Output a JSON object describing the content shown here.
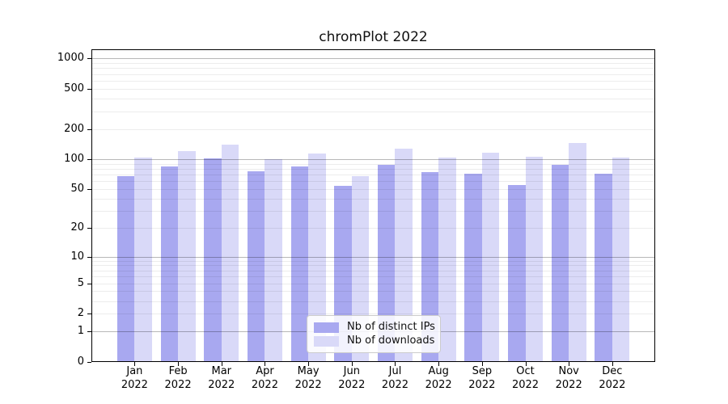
{
  "chart_data": {
    "type": "bar",
    "title": "chromPlot 2022",
    "categories": [
      "Jan",
      "Feb",
      "Mar",
      "Apr",
      "May",
      "Jun",
      "Jul",
      "Aug",
      "Sep",
      "Oct",
      "Nov",
      "Dec"
    ],
    "x_tick_year": "2022",
    "series": [
      {
        "name": "Nb of distinct IPs",
        "color": "#a8a8f0",
        "values": [
          68,
          84,
          102,
          76,
          85,
          54,
          87,
          74,
          71,
          55,
          88,
          71
        ]
      },
      {
        "name": "Nb of downloads",
        "color": "#d9d9f8",
        "values": [
          104,
          121,
          139,
          99,
          113,
          68,
          127,
          103,
          115,
          105,
          146,
          104
        ]
      }
    ],
    "y_ticks": [
      0,
      1,
      2,
      5,
      10,
      20,
      50,
      100,
      200,
      500,
      1000
    ],
    "y_scale": "log1p",
    "ylim": [
      0,
      1230
    ],
    "xlabel": "",
    "ylabel": "",
    "grid": true,
    "grid_major_color": "#b8b8b8",
    "grid_minor_color": "#ececec",
    "legend_position": "inside-bottom-center",
    "frame_color": "#000000",
    "background_color": "#ffffff"
  }
}
